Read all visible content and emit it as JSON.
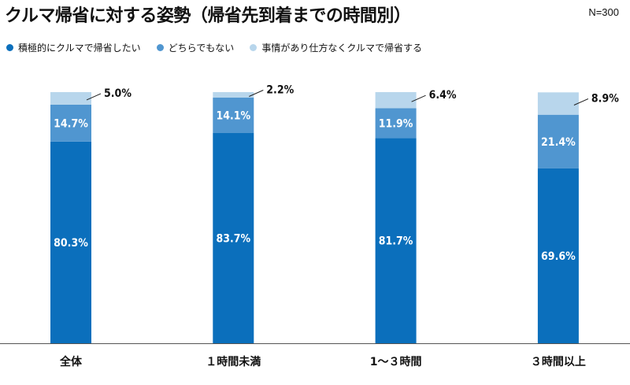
{
  "title": "クルマ帰省に対する姿勢（帰省先到着までの時間別）",
  "sample_size": "N=300",
  "colors": {
    "dark": "#0b6fbc",
    "mid": "#5096d0",
    "light": "#b8d6ec",
    "axis": "#555555",
    "label_on_bar": "#ffffff",
    "label_outside": "#111111"
  },
  "legend": [
    {
      "label": "積極的にクルマで帰省したい",
      "color": "#0b6fbc"
    },
    {
      "label": "どちらでもない",
      "color": "#5096d0"
    },
    {
      "label": "事情があり仕方なくクルマで帰省する",
      "color": "#b8d6ec"
    }
  ],
  "chart_data": {
    "type": "bar",
    "stacked": true,
    "percent": true,
    "categories": [
      "全体",
      "１時間未満",
      "1～３時間",
      "３時間以上"
    ],
    "series": [
      {
        "name": "積極的にクルマで帰省したい",
        "values": [
          80.3,
          83.7,
          81.7,
          69.6
        ],
        "labels": [
          "80.3%",
          "83.7%",
          "81.7%",
          "69.6%"
        ]
      },
      {
        "name": "どちらでもない",
        "values": [
          14.7,
          14.1,
          11.9,
          21.4
        ],
        "labels": [
          "14.7%",
          "14.1%",
          "11.9%",
          "21.4%"
        ]
      },
      {
        "name": "事情があり仕方なくクルマで帰省する",
        "values": [
          5.0,
          2.2,
          6.4,
          8.9
        ],
        "labels": [
          "5.0%",
          "2.2%",
          "6.4%",
          "8.9%"
        ]
      }
    ],
    "ylim": [
      0,
      100
    ],
    "grid": false,
    "legend_position": "top-left"
  }
}
